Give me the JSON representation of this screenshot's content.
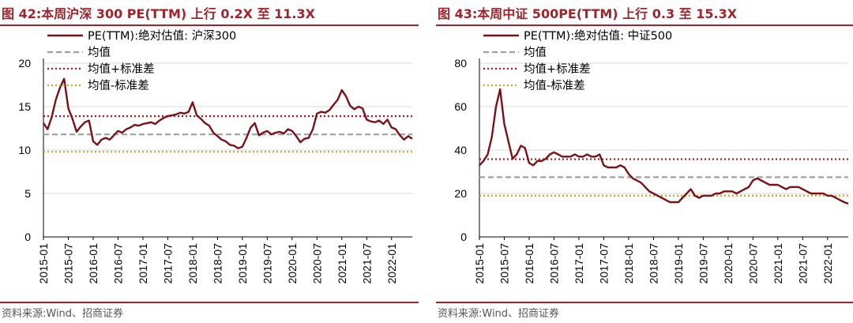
{
  "figures": [
    {
      "id": "left",
      "title": "图 42:本周沪深 300 PE(TTM) 上行 0.2X 至 11.3X",
      "source": "资料来源:Wind、招商证券"
    },
    {
      "id": "right",
      "title": "图 43:本周中证 500PE(TTM) 上行 0.3 至 15.3X",
      "source": "资料来源:Wind、招商证券"
    }
  ],
  "colors": {
    "title": "#a0252a",
    "series": "#7a1116",
    "mean": "#a0a0a0",
    "mean_plus_std": "#a8181b",
    "mean_minus_std": "#c9a12e",
    "grid": "#d9d9d9"
  },
  "chart_data": [
    {
      "type": "line",
      "title": "",
      "xlabel": "",
      "ylabel": "",
      "ylim": [
        0,
        20
      ],
      "yticks": [
        "0",
        "5",
        "10",
        "15",
        "20"
      ],
      "x_tick_labels": [
        "2015-01",
        "2015-07",
        "2016-01",
        "2016-07",
        "2017-01",
        "2017-07",
        "2018-01",
        "2018-07",
        "2019-01",
        "2019-07",
        "2020-01",
        "2020-07",
        "2021-01",
        "2021-07",
        "2022-01"
      ],
      "xlim": [
        "2015-01",
        "2022-06"
      ],
      "grid": "horizontal",
      "legend_position": "top",
      "series": [
        {
          "name": "PE(TTM):绝对估值: 沪深300",
          "style": "solid",
          "x": [
            "2015-01",
            "2015-02",
            "2015-03",
            "2015-04",
            "2015-05",
            "2015-06",
            "2015-07",
            "2015-08",
            "2015-09",
            "2015-10",
            "2015-11",
            "2015-12",
            "2016-01",
            "2016-02",
            "2016-03",
            "2016-04",
            "2016-05",
            "2016-06",
            "2016-07",
            "2016-08",
            "2016-09",
            "2016-10",
            "2016-11",
            "2016-12",
            "2017-01",
            "2017-02",
            "2017-03",
            "2017-04",
            "2017-05",
            "2017-06",
            "2017-07",
            "2017-08",
            "2017-09",
            "2017-10",
            "2017-11",
            "2017-12",
            "2018-01",
            "2018-02",
            "2018-03",
            "2018-04",
            "2018-05",
            "2018-06",
            "2018-07",
            "2018-08",
            "2018-09",
            "2018-10",
            "2018-11",
            "2018-12",
            "2019-01",
            "2019-02",
            "2019-03",
            "2019-04",
            "2019-05",
            "2019-06",
            "2019-07",
            "2019-08",
            "2019-09",
            "2019-10",
            "2019-11",
            "2019-12",
            "2020-01",
            "2020-02",
            "2020-03",
            "2020-04",
            "2020-05",
            "2020-06",
            "2020-07",
            "2020-08",
            "2020-09",
            "2020-10",
            "2020-11",
            "2020-12",
            "2021-01",
            "2021-02",
            "2021-03",
            "2021-04",
            "2021-05",
            "2021-06",
            "2021-07",
            "2021-08",
            "2021-09",
            "2021-10",
            "2021-11",
            "2021-12",
            "2022-01",
            "2022-02",
            "2022-03",
            "2022-04",
            "2022-05",
            "2022-06"
          ],
          "values": [
            13.1,
            12.4,
            13.8,
            15.8,
            17.2,
            18.2,
            14.8,
            13.6,
            12.1,
            12.7,
            13.2,
            13.4,
            11.0,
            10.6,
            11.2,
            11.4,
            11.2,
            11.7,
            12.2,
            12.0,
            12.4,
            12.6,
            12.9,
            12.8,
            13.0,
            13.1,
            13.2,
            13.0,
            13.4,
            13.7,
            13.9,
            14.0,
            14.1,
            14.3,
            14.2,
            14.4,
            15.5,
            14.0,
            13.6,
            13.1,
            12.8,
            12.0,
            11.6,
            11.2,
            11.0,
            10.6,
            10.5,
            10.2,
            10.4,
            11.4,
            12.6,
            13.1,
            11.7,
            12.0,
            12.2,
            11.8,
            12.0,
            12.1,
            11.9,
            12.4,
            12.2,
            11.6,
            10.9,
            11.3,
            11.4,
            12.4,
            14.2,
            14.4,
            14.3,
            14.6,
            15.2,
            15.8,
            16.9,
            16.2,
            15.1,
            14.7,
            15.0,
            14.8,
            13.5,
            13.3,
            13.2,
            13.4,
            13.0,
            13.5,
            12.6,
            12.4,
            11.7,
            11.2,
            11.6,
            11.3
          ]
        },
        {
          "name": "均值",
          "style": "dashed",
          "value": 11.8
        },
        {
          "name": "均值+标准差",
          "style": "dotted",
          "value": 13.9
        },
        {
          "name": "均值-标准差",
          "style": "dotted",
          "value": 9.8
        }
      ]
    },
    {
      "type": "line",
      "title": "",
      "xlabel": "",
      "ylabel": "",
      "ylim": [
        0,
        80
      ],
      "yticks": [
        "0",
        "20",
        "40",
        "60",
        "80"
      ],
      "x_tick_labels": [
        "2015-01",
        "2015-07",
        "2016-01",
        "2016-07",
        "2017-01",
        "2017-07",
        "2018-01",
        "2018-07",
        "2019-01",
        "2019-07",
        "2020-01",
        "2020-07",
        "2021-01",
        "2021-07",
        "2022-01"
      ],
      "xlim": [
        "2015-01",
        "2022-06"
      ],
      "grid": "horizontal",
      "legend_position": "top",
      "series": [
        {
          "name": "PE(TTM):绝对估值: 中证500",
          "style": "solid",
          "x": [
            "2015-01",
            "2015-02",
            "2015-03",
            "2015-04",
            "2015-05",
            "2015-06",
            "2015-07",
            "2015-08",
            "2015-09",
            "2015-10",
            "2015-11",
            "2015-12",
            "2016-01",
            "2016-02",
            "2016-03",
            "2016-04",
            "2016-05",
            "2016-06",
            "2016-07",
            "2016-08",
            "2016-09",
            "2016-10",
            "2016-11",
            "2016-12",
            "2017-01",
            "2017-02",
            "2017-03",
            "2017-04",
            "2017-05",
            "2017-06",
            "2017-07",
            "2017-08",
            "2017-09",
            "2017-10",
            "2017-11",
            "2017-12",
            "2018-01",
            "2018-02",
            "2018-03",
            "2018-04",
            "2018-05",
            "2018-06",
            "2018-07",
            "2018-08",
            "2018-09",
            "2018-10",
            "2018-11",
            "2018-12",
            "2019-01",
            "2019-02",
            "2019-03",
            "2019-04",
            "2019-05",
            "2019-06",
            "2019-07",
            "2019-08",
            "2019-09",
            "2019-10",
            "2019-11",
            "2019-12",
            "2020-01",
            "2020-02",
            "2020-03",
            "2020-04",
            "2020-05",
            "2020-06",
            "2020-07",
            "2020-08",
            "2020-09",
            "2020-10",
            "2020-11",
            "2020-12",
            "2021-01",
            "2021-02",
            "2021-03",
            "2021-04",
            "2021-05",
            "2021-06",
            "2021-07",
            "2021-08",
            "2021-09",
            "2021-10",
            "2021-11",
            "2021-12",
            "2022-01",
            "2022-02",
            "2022-03",
            "2022-04",
            "2022-05",
            "2022-06"
          ],
          "values": [
            33,
            35,
            38,
            46,
            60,
            68,
            52,
            44,
            36,
            38,
            42,
            41,
            34,
            33,
            35,
            35,
            36,
            38,
            39,
            38,
            37,
            37,
            37,
            38,
            37,
            37,
            38,
            37,
            37,
            38,
            33,
            32,
            32,
            32,
            33,
            32,
            29,
            27,
            26,
            25,
            23,
            21,
            20,
            19,
            18,
            17,
            16,
            16,
            16,
            18,
            20,
            22,
            19,
            18,
            19,
            19,
            19,
            20,
            20,
            21,
            21,
            21,
            20,
            21,
            22,
            23,
            26,
            27,
            26,
            25,
            24,
            24,
            24,
            23,
            22,
            23,
            23,
            23,
            22,
            21,
            20,
            20,
            20,
            20,
            19,
            19,
            18,
            17,
            16,
            15.3
          ]
        },
        {
          "name": "均值",
          "style": "dashed",
          "value": 27.5
        },
        {
          "name": "均值+标准差",
          "style": "dotted",
          "value": 35.8
        },
        {
          "name": "均值-标准差",
          "style": "dotted",
          "value": 19.0
        }
      ]
    }
  ]
}
